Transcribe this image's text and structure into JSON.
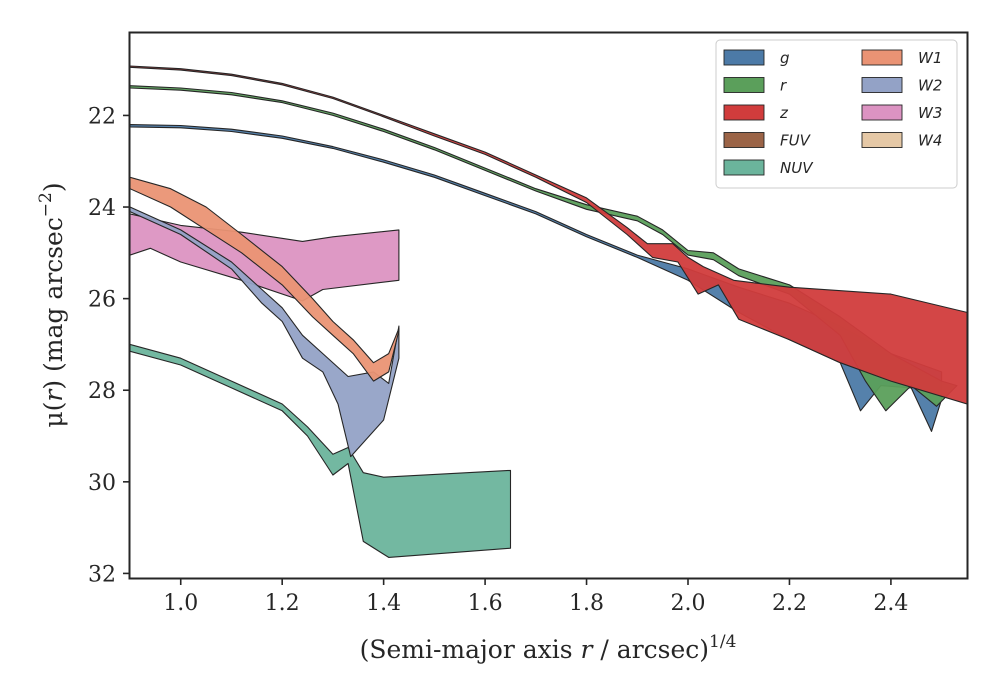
{
  "chart_data": {
    "type": "area",
    "xlabel": "(Semi-major axis r / arcsec)^1/4",
    "xlabel_parts": {
      "pre": "(Semi-major axis ",
      "var": "r",
      "post": " / arcsec)",
      "exp": "1/4"
    },
    "ylabel": "μ(r) (mag arcsec^−2)",
    "ylabel_parts": {
      "pre": "μ(",
      "var": "r",
      "post": ") (mag arcsec",
      "exp": "−2",
      "close": ")"
    },
    "xlim": [
      0.9,
      2.55
    ],
    "ylim": [
      32.1,
      20.2
    ],
    "y_inverted": true,
    "xticks": [
      1.0,
      1.2,
      1.4,
      1.6,
      1.8,
      2.0,
      2.2,
      2.4
    ],
    "xtick_labels": [
      "1.0",
      "1.2",
      "1.4",
      "1.6",
      "1.8",
      "2.0",
      "2.2",
      "2.4"
    ],
    "yticks": [
      22,
      24,
      26,
      28,
      30,
      32
    ],
    "ytick_labels": [
      "22",
      "24",
      "26",
      "28",
      "30",
      "32"
    ],
    "grid": false,
    "legend_position": "top-right",
    "legend_columns": 2,
    "series": [
      {
        "name": "g",
        "color": "#4c7aa7",
        "upper": [
          [
            0.9,
            22.2
          ],
          [
            1.0,
            22.22
          ],
          [
            1.1,
            22.3
          ],
          [
            1.2,
            22.45
          ],
          [
            1.3,
            22.68
          ],
          [
            1.4,
            22.97
          ],
          [
            1.5,
            23.3
          ],
          [
            1.6,
            23.7
          ],
          [
            1.7,
            24.1
          ],
          [
            1.8,
            24.6
          ],
          [
            1.9,
            25.05
          ],
          [
            2.0,
            25.35
          ],
          [
            2.1,
            25.75
          ],
          [
            2.2,
            26.1
          ],
          [
            2.3,
            26.6
          ],
          [
            2.4,
            27.2
          ],
          [
            2.5,
            27.6
          ]
        ],
        "lower": [
          [
            0.9,
            22.25
          ],
          [
            1.0,
            22.27
          ],
          [
            1.1,
            22.35
          ],
          [
            1.2,
            22.5
          ],
          [
            1.3,
            22.72
          ],
          [
            1.4,
            23.02
          ],
          [
            1.5,
            23.35
          ],
          [
            1.6,
            23.75
          ],
          [
            1.7,
            24.15
          ],
          [
            1.8,
            24.65
          ],
          [
            1.9,
            25.1
          ],
          [
            2.0,
            25.6
          ],
          [
            2.1,
            26.3
          ],
          [
            2.2,
            26.9
          ],
          [
            2.3,
            27.4
          ],
          [
            2.34,
            28.45
          ],
          [
            2.38,
            27.9
          ],
          [
            2.44,
            27.95
          ],
          [
            2.48,
            28.9
          ],
          [
            2.5,
            28.2
          ]
        ]
      },
      {
        "name": "r",
        "color": "#5b9f5b",
        "upper": [
          [
            0.9,
            21.35
          ],
          [
            1.0,
            21.4
          ],
          [
            1.1,
            21.5
          ],
          [
            1.2,
            21.68
          ],
          [
            1.3,
            21.95
          ],
          [
            1.4,
            22.3
          ],
          [
            1.5,
            22.7
          ],
          [
            1.6,
            23.15
          ],
          [
            1.7,
            23.6
          ],
          [
            1.8,
            23.95
          ],
          [
            1.9,
            24.2
          ],
          [
            1.95,
            24.5
          ],
          [
            2.0,
            24.95
          ],
          [
            2.05,
            25.0
          ],
          [
            2.1,
            25.35
          ],
          [
            2.2,
            25.7
          ],
          [
            2.3,
            26.4
          ],
          [
            2.4,
            27.2
          ],
          [
            2.5,
            27.8
          ]
        ],
        "lower": [
          [
            0.9,
            21.4
          ],
          [
            1.0,
            21.45
          ],
          [
            1.1,
            21.55
          ],
          [
            1.2,
            21.72
          ],
          [
            1.3,
            22.0
          ],
          [
            1.4,
            22.35
          ],
          [
            1.5,
            22.75
          ],
          [
            1.6,
            23.2
          ],
          [
            1.7,
            23.65
          ],
          [
            1.8,
            24.05
          ],
          [
            1.9,
            24.3
          ],
          [
            1.95,
            24.6
          ],
          [
            2.0,
            25.05
          ],
          [
            2.05,
            25.15
          ],
          [
            2.1,
            25.5
          ],
          [
            2.2,
            25.9
          ],
          [
            2.3,
            26.8
          ],
          [
            2.35,
            27.8
          ],
          [
            2.39,
            28.45
          ],
          [
            2.44,
            27.9
          ],
          [
            2.49,
            28.35
          ],
          [
            2.53,
            27.9
          ]
        ]
      },
      {
        "name": "z",
        "color": "#d13c3c",
        "upper": [
          [
            0.9,
            20.92
          ],
          [
            1.0,
            20.98
          ],
          [
            1.1,
            21.1
          ],
          [
            1.2,
            21.3
          ],
          [
            1.3,
            21.6
          ],
          [
            1.4,
            22.0
          ],
          [
            1.5,
            22.4
          ],
          [
            1.6,
            22.8
          ],
          [
            1.7,
            23.3
          ],
          [
            1.8,
            23.8
          ],
          [
            1.88,
            24.45
          ],
          [
            1.92,
            24.8
          ],
          [
            1.97,
            24.8
          ],
          [
            2.0,
            25.1
          ],
          [
            2.03,
            25.3
          ],
          [
            2.09,
            25.6
          ],
          [
            2.2,
            25.75
          ],
          [
            2.4,
            25.9
          ],
          [
            2.55,
            26.3
          ]
        ],
        "lower": [
          [
            0.9,
            20.95
          ],
          [
            1.0,
            21.01
          ],
          [
            1.1,
            21.13
          ],
          [
            1.2,
            21.33
          ],
          [
            1.3,
            21.63
          ],
          [
            1.4,
            22.03
          ],
          [
            1.5,
            22.45
          ],
          [
            1.6,
            22.85
          ],
          [
            1.7,
            23.35
          ],
          [
            1.8,
            23.9
          ],
          [
            1.88,
            24.6
          ],
          [
            1.93,
            25.1
          ],
          [
            1.98,
            25.2
          ],
          [
            2.02,
            25.9
          ],
          [
            2.06,
            25.7
          ],
          [
            2.1,
            26.45
          ],
          [
            2.2,
            26.9
          ],
          [
            2.3,
            27.4
          ],
          [
            2.4,
            27.8
          ],
          [
            2.55,
            28.3
          ]
        ]
      },
      {
        "name": "FUV",
        "color": "#9b6447",
        "upper": [],
        "lower": []
      },
      {
        "name": "NUV",
        "color": "#6bb49c",
        "upper": [
          [
            0.9,
            27.0
          ],
          [
            1.0,
            27.3
          ],
          [
            1.1,
            27.8
          ],
          [
            1.2,
            28.3
          ],
          [
            1.25,
            28.8
          ],
          [
            1.3,
            29.4
          ],
          [
            1.33,
            29.25
          ],
          [
            1.36,
            29.8
          ],
          [
            1.4,
            29.9
          ],
          [
            1.65,
            29.75
          ]
        ],
        "lower": [
          [
            0.9,
            27.15
          ],
          [
            1.0,
            27.45
          ],
          [
            1.1,
            27.95
          ],
          [
            1.2,
            28.45
          ],
          [
            1.25,
            29.0
          ],
          [
            1.3,
            29.85
          ],
          [
            1.33,
            29.6
          ],
          [
            1.36,
            31.3
          ],
          [
            1.41,
            31.65
          ],
          [
            1.65,
            31.45
          ]
        ]
      },
      {
        "name": "W1",
        "color": "#ea9374",
        "upper": [
          [
            0.9,
            23.35
          ],
          [
            0.98,
            23.6
          ],
          [
            1.05,
            24.0
          ],
          [
            1.12,
            24.6
          ],
          [
            1.2,
            25.3
          ],
          [
            1.26,
            26.0
          ],
          [
            1.3,
            26.5
          ],
          [
            1.34,
            26.9
          ],
          [
            1.38,
            27.4
          ],
          [
            1.41,
            27.2
          ],
          [
            1.43,
            26.65
          ]
        ],
        "lower": [
          [
            0.9,
            23.6
          ],
          [
            0.98,
            24.0
          ],
          [
            1.05,
            24.5
          ],
          [
            1.12,
            25.0
          ],
          [
            1.2,
            25.7
          ],
          [
            1.26,
            26.4
          ],
          [
            1.3,
            26.8
          ],
          [
            1.34,
            27.2
          ],
          [
            1.38,
            27.8
          ],
          [
            1.41,
            27.6
          ],
          [
            1.43,
            26.7
          ]
        ]
      },
      {
        "name": "W2",
        "color": "#93a2c6",
        "upper": [
          [
            0.9,
            24.0
          ],
          [
            1.0,
            24.5
          ],
          [
            1.1,
            25.2
          ],
          [
            1.16,
            25.8
          ],
          [
            1.2,
            26.2
          ],
          [
            1.24,
            26.8
          ],
          [
            1.28,
            27.2
          ],
          [
            1.33,
            27.7
          ],
          [
            1.38,
            27.6
          ],
          [
            1.41,
            27.85
          ],
          [
            1.43,
            26.6
          ]
        ],
        "lower": [
          [
            0.9,
            24.1
          ],
          [
            1.0,
            24.6
          ],
          [
            1.1,
            25.35
          ],
          [
            1.16,
            26.1
          ],
          [
            1.2,
            26.5
          ],
          [
            1.24,
            27.3
          ],
          [
            1.28,
            27.6
          ],
          [
            1.31,
            28.3
          ],
          [
            1.335,
            29.45
          ],
          [
            1.4,
            28.65
          ],
          [
            1.43,
            27.3
          ]
        ]
      },
      {
        "name": "W3",
        "color": "#dc93c2",
        "upper": [
          [
            0.9,
            24.15
          ],
          [
            1.0,
            24.4
          ],
          [
            1.12,
            24.55
          ],
          [
            1.24,
            24.75
          ],
          [
            1.3,
            24.65
          ],
          [
            1.43,
            24.5
          ]
        ],
        "lower": [
          [
            0.9,
            25.05
          ],
          [
            0.94,
            24.9
          ],
          [
            1.0,
            25.2
          ],
          [
            1.12,
            25.6
          ],
          [
            1.24,
            26.05
          ],
          [
            1.28,
            25.8
          ],
          [
            1.43,
            25.6
          ]
        ]
      },
      {
        "name": "W4",
        "color": "#e5c8a6",
        "upper": [],
        "lower": []
      }
    ]
  }
}
